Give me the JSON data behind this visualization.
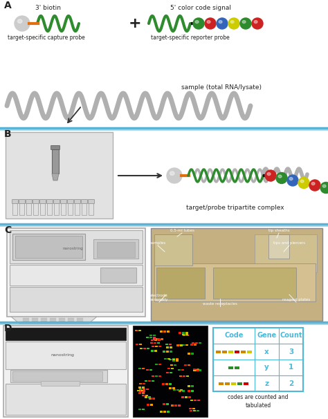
{
  "bg_color": "#ffffff",
  "sep_color": "#5ab4d6",
  "text_color": "#222222",
  "panel_labels": [
    "A",
    "B",
    "C",
    "D"
  ],
  "panel_A": {
    "capture_probe_label": "3' biotin",
    "reporter_probe_label": "5' color code signal",
    "capture_probe_sub": "target-specific capture probe",
    "reporter_probe_sub": "target-specific reporter probe",
    "sample_label": "sample (total RNA/lysate)",
    "wave_green": "#2e8b2e",
    "wave_gray": "#b0b0b0",
    "wave_orange": "#e07010",
    "biotin_color": "#cccccc",
    "bead_colors_reporter": [
      "#2d8a2d",
      "#cc2222",
      "#3366bb",
      "#cccc00",
      "#2d8a2d",
      "#cc2222"
    ]
  },
  "panel_B": {
    "label": "target/probe tripartite complex",
    "bg_color": "#e6e6e6",
    "bead_colors": [
      "#cc2222",
      "#2d8a2d",
      "#3366bb",
      "#cccc00",
      "#cc2222",
      "#2d8a2d"
    ]
  },
  "panel_D": {
    "table_headers": [
      "Code",
      "Gene",
      "Count"
    ],
    "table_rows": [
      {
        "gene": "x",
        "count": "3"
      },
      {
        "gene": "y",
        "count": "1"
      },
      {
        "gene": "z",
        "count": "2"
      }
    ],
    "header_color": "#4db8d8",
    "footer_text": "codes are counted and\ntabulated",
    "row1_code": [
      [
        "#cc8800",
        "#cc8800",
        "#cccc00",
        "#cc0000",
        "#cc8800",
        "#cccc00"
      ]
    ],
    "row2_code": [
      [
        "#2d8a2d",
        "#2d8a2d"
      ]
    ],
    "row3_code": [
      [
        "#cc8800",
        "#cc8800",
        "#cccc00",
        "#2d8a2d",
        "#cc0000"
      ]
    ]
  },
  "font_small": 6.5,
  "font_tiny": 5.5,
  "font_panel": 10
}
